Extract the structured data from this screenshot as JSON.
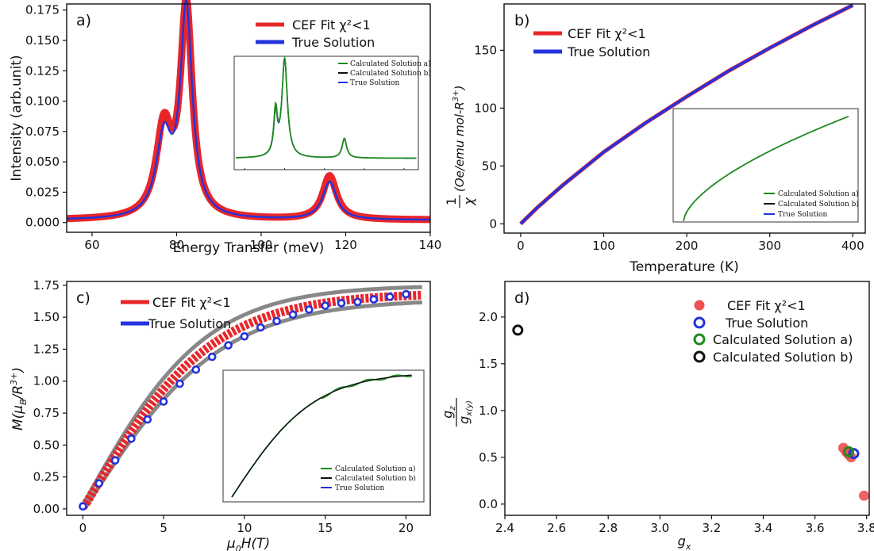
{
  "colors": {
    "fit": "#e8262a",
    "true": "#2233dd",
    "calc_a": "#1e8a1e",
    "calc_b": "#111111",
    "band": "#888888",
    "axis": "#111111",
    "fit_dot": "#f05050"
  },
  "chart_data": [
    {
      "panel": "a)",
      "type": "line",
      "xlabel": "Energy Transfer (meV)",
      "ylabel": "Intensity (arb.unit)",
      "xlim": [
        54,
        140
      ],
      "ylim": [
        -0.008,
        0.18
      ],
      "xticks": [
        60,
        80,
        100,
        120,
        140
      ],
      "yticks": [
        0.0,
        0.025,
        0.05,
        0.075,
        0.1,
        0.125,
        0.15,
        0.175
      ],
      "ytick_labels": [
        "0.000",
        "0.025",
        "0.050",
        "0.075",
        "0.100",
        "0.125",
        "0.150",
        "0.175"
      ],
      "series": [
        {
          "name": "CEF Fit χ²<1",
          "color_key": "fit",
          "peaks": [
            {
              "center": 77,
              "height": 0.072,
              "width": 2.2
            },
            {
              "center": 82.3,
              "height": 0.172,
              "width": 1.7
            },
            {
              "center": 116.2,
              "height": 0.036,
              "width": 2.0
            }
          ],
          "baseline": 0.002,
          "band": 0.004
        },
        {
          "name": "True Solution",
          "color_key": "true",
          "peaks": [
            {
              "center": 77,
              "height": 0.064,
              "width": 2.2
            },
            {
              "center": 82.3,
              "height": 0.172,
              "width": 1.7
            },
            {
              "center": 116.2,
              "height": 0.031,
              "width": 2.0
            }
          ],
          "baseline": 0.002
        }
      ],
      "legend": [
        "CEF Fit χ²<1",
        "True Solution"
      ],
      "legend_position": "top-right",
      "inset": {
        "legend": [
          "Calculated Solution a)",
          "Calculated Solution b)",
          "True Solution"
        ],
        "legend_position": "top-left",
        "peaks": [
          {
            "center": 0.22,
            "height": 0.45,
            "width": 0.012
          },
          {
            "center": 0.27,
            "height": 1.0,
            "width": 0.018
          },
          {
            "center": 0.6,
            "height": 0.2,
            "width": 0.015
          }
        ]
      }
    },
    {
      "panel": "b)",
      "type": "line",
      "xlabel": "Temperature (K)",
      "ylabel": "1/χ (Oe/emu mol-R³⁺)",
      "ylabel_parts": {
        "num": "1",
        "den": "χ",
        "rest": "(Oe/emu mol-R",
        "sup": "3+",
        "close": ")"
      },
      "xlim": [
        -20,
        415
      ],
      "ylim": [
        -8,
        190
      ],
      "xticks": [
        0,
        100,
        200,
        300,
        400
      ],
      "yticks": [
        0,
        50,
        100,
        150
      ],
      "series": [
        {
          "name": "CEF Fit χ²<1",
          "color_key": "fit",
          "x": [
            0,
            20,
            50,
            100,
            150,
            200,
            250,
            300,
            350,
            400
          ],
          "y": [
            0,
            14,
            33,
            62,
            87,
            110,
            132,
            152,
            171,
            189
          ]
        },
        {
          "name": "True Solution",
          "color_key": "true",
          "x": [
            0,
            20,
            50,
            100,
            150,
            200,
            250,
            300,
            350,
            400
          ],
          "y": [
            0,
            14,
            33,
            62,
            87,
            110,
            132,
            152,
            171,
            189
          ]
        }
      ],
      "legend": [
        "CEF Fit χ²<1",
        "True Solution"
      ],
      "legend_position": "top-left",
      "inset": {
        "legend": [
          "Calculated Solution a)",
          "Calculated Solution b)",
          "True Solution"
        ],
        "legend_position": "bottom-right"
      }
    },
    {
      "panel": "c)",
      "type": "line",
      "xlabel": "μ0H(T)",
      "xlabel_parts": {
        "mu": "μ",
        "sub": "0",
        "rest": "H(T)"
      },
      "ylabel": "M(μB/R³⁺)",
      "ylabel_parts": {
        "pre": "M(μ",
        "sub": "B",
        "mid": "/R",
        "sup": "3+",
        "close": ")"
      },
      "xlim": [
        -1,
        21.5
      ],
      "ylim": [
        -0.05,
        1.78
      ],
      "xticks": [
        0,
        5,
        10,
        15,
        20
      ],
      "yticks": [
        0.0,
        0.25,
        0.5,
        0.75,
        1.0,
        1.25,
        1.5,
        1.75
      ],
      "ytick_labels": [
        "0.00",
        "0.25",
        "0.50",
        "0.75",
        "1.00",
        "1.25",
        "1.50",
        "1.75"
      ],
      "series": [
        {
          "name": "CEF Fit χ²<1",
          "color_key": "fit",
          "model": "saturation",
          "msat": 1.72,
          "scale": 8.0
        },
        {
          "name": "True Solution",
          "color_key": "true",
          "markers": "open-circle",
          "x": [
            0,
            1,
            2,
            3,
            4,
            5,
            6,
            7,
            8,
            9,
            10,
            11,
            12,
            13,
            14,
            15,
            16,
            17,
            18,
            19,
            20
          ],
          "y": [
            0.02,
            0.2,
            0.38,
            0.55,
            0.7,
            0.84,
            0.98,
            1.09,
            1.19,
            1.28,
            1.35,
            1.42,
            1.47,
            1.52,
            1.56,
            1.59,
            1.61,
            1.62,
            1.64,
            1.66,
            1.68
          ]
        }
      ],
      "legend": [
        "CEF Fit χ²<1",
        "True Solution"
      ],
      "legend_position": "top-left",
      "inset": {
        "legend": [
          "Calculated Solution a)",
          "Calculated Solution b)",
          "True Solution"
        ],
        "legend_position": "bottom-right"
      }
    },
    {
      "panel": "d)",
      "type": "scatter",
      "xlabel": "gx",
      "xlabel_parts": {
        "main": "g",
        "sub": "x"
      },
      "ylabel": "gz/gx(y)",
      "ylabel_parts": {
        "num": "g",
        "num_sub": "z",
        "den": "g",
        "den_sub": "x(y)"
      },
      "xlim": [
        2.4,
        3.81
      ],
      "ylim": [
        -0.12,
        2.38
      ],
      "xticks": [
        2.4,
        2.6,
        2.8,
        3.0,
        3.2,
        3.4,
        3.6,
        3.8
      ],
      "xtick_labels": [
        "2.4",
        "2.6",
        "2.8",
        "3.0",
        "3.2",
        "3.4",
        "3.6",
        "3.8"
      ],
      "yticks": [
        0.0,
        0.5,
        1.0,
        1.5,
        2.0
      ],
      "ytick_labels": [
        "0.0",
        "0.5",
        "1.0",
        "1.5",
        "2.0"
      ],
      "series": [
        {
          "name": "CEF Fit χ²<1",
          "color_key": "fit_dot",
          "marker": "filled",
          "x": [
            3.71,
            3.72,
            3.73,
            3.74,
            3.79
          ],
          "y": [
            0.6,
            0.56,
            0.53,
            0.5,
            0.09
          ]
        },
        {
          "name": "True Solution",
          "color_key": "true",
          "marker": "open",
          "x": [
            3.75
          ],
          "y": [
            0.54
          ]
        },
        {
          "name": "Calculated Solution a)",
          "color_key": "calc_a",
          "marker": "open",
          "x": [
            3.73
          ],
          "y": [
            0.56
          ]
        },
        {
          "name": "Calculated Solution b)",
          "color_key": "calc_b",
          "marker": "open",
          "x": [
            2.45
          ],
          "y": [
            1.86
          ]
        }
      ],
      "legend": [
        "CEF Fit χ²<1",
        "True Solution",
        "Calculated Solution a)",
        "Calculated Solution b)"
      ],
      "legend_position": "top-right"
    }
  ]
}
